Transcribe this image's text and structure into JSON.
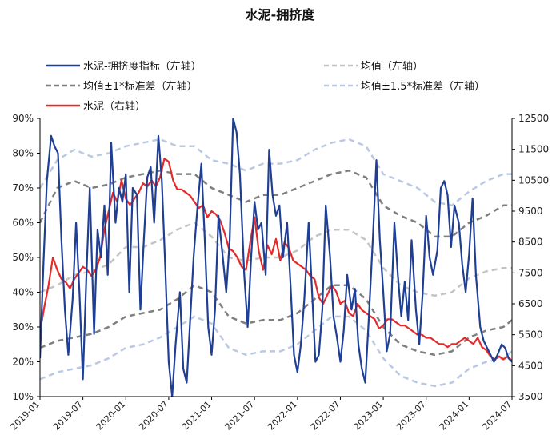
{
  "chart_data": {
    "type": "line",
    "title": "水泥-拥挤度",
    "xlabel": "",
    "ylabel_left": "",
    "ylabel_right": "",
    "x_start": "2019-01",
    "x_end": "2024-07",
    "x_tick_labels": [
      "2019-01",
      "2019-07",
      "2020-01",
      "2020-07",
      "2021-01",
      "2021-07",
      "2022-01",
      "2022-07",
      "2023-01",
      "2023-07",
      "2024-01",
      "2024-07"
    ],
    "y_left": {
      "min": 0.1,
      "max": 0.9,
      "ticks": [
        "10%",
        "20%",
        "30%",
        "40%",
        "50%",
        "60%",
        "70%",
        "80%",
        "90%"
      ]
    },
    "y_right": {
      "min": 3500,
      "max": 12500,
      "ticks": [
        "3500",
        "4500",
        "5500",
        "6500",
        "7500",
        "8500",
        "9500",
        "10500",
        "11500",
        "12500"
      ]
    },
    "grid": false,
    "legend_position": "top",
    "legend": [
      {
        "label": "水泥-拥挤度指标（左轴）",
        "color": "#1f3f94",
        "style": "solid"
      },
      {
        "label": "均值（左轴）",
        "color": "#c4c4c4",
        "style": "dashed"
      },
      {
        "label": "均值±1*标准差（左轴）",
        "color": "#7f7f7f",
        "style": "dashed"
      },
      {
        "label": "均值±1.5*标准差（左轴）",
        "color": "#b9c9e3",
        "style": "dashed"
      },
      {
        "label": "水泥（右轴）",
        "color": "#e32b2b",
        "style": "solid"
      }
    ],
    "series": [
      {
        "name": "水泥-拥挤度指标（左轴）",
        "axis": "left",
        "color": "#1f3f94",
        "x": [
          2019.0,
          2019.04,
          2019.08,
          2019.13,
          2019.17,
          2019.21,
          2019.25,
          2019.29,
          2019.33,
          2019.38,
          2019.42,
          2019.46,
          2019.5,
          2019.54,
          2019.58,
          2019.63,
          2019.67,
          2019.71,
          2019.75,
          2019.79,
          2019.83,
          2019.88,
          2019.92,
          2019.96,
          2020.0,
          2020.04,
          2020.08,
          2020.13,
          2020.17,
          2020.21,
          2020.25,
          2020.29,
          2020.33,
          2020.38,
          2020.42,
          2020.46,
          2020.5,
          2020.54,
          2020.58,
          2020.63,
          2020.67,
          2020.71,
          2020.75,
          2020.79,
          2020.83,
          2020.88,
          2020.92,
          2020.96,
          2021.0,
          2021.04,
          2021.08,
          2021.13,
          2021.17,
          2021.21,
          2021.25,
          2021.29,
          2021.33,
          2021.38,
          2021.42,
          2021.46,
          2021.5,
          2021.54,
          2021.58,
          2021.63,
          2021.67,
          2021.71,
          2021.75,
          2021.79,
          2021.83,
          2021.88,
          2021.92,
          2021.96,
          2022.0,
          2022.04,
          2022.08,
          2022.13,
          2022.17,
          2022.21,
          2022.25,
          2022.29,
          2022.33,
          2022.38,
          2022.42,
          2022.46,
          2022.5,
          2022.54,
          2022.58,
          2022.63,
          2022.67,
          2022.71,
          2022.75,
          2022.79,
          2022.83,
          2022.88,
          2022.92,
          2022.96,
          2023.0,
          2023.04,
          2023.08,
          2023.13,
          2023.17,
          2023.21,
          2023.25,
          2023.29,
          2023.33,
          2023.38,
          2023.42,
          2023.46,
          2023.5,
          2023.54,
          2023.58,
          2023.63,
          2023.67,
          2023.71,
          2023.75,
          2023.79,
          2023.83,
          2023.88,
          2023.92,
          2023.96,
          2024.0,
          2024.04,
          2024.08,
          2024.13,
          2024.17,
          2024.21,
          2024.25,
          2024.29,
          2024.33,
          2024.38,
          2024.42,
          2024.46,
          2024.5
        ],
        "y": [
          0.21,
          0.48,
          0.72,
          0.85,
          0.82,
          0.8,
          0.55,
          0.35,
          0.22,
          0.38,
          0.6,
          0.4,
          0.15,
          0.44,
          0.7,
          0.28,
          0.58,
          0.5,
          0.65,
          0.45,
          0.83,
          0.6,
          0.7,
          0.66,
          0.74,
          0.4,
          0.7,
          0.68,
          0.35,
          0.55,
          0.73,
          0.76,
          0.6,
          0.85,
          0.72,
          0.47,
          0.2,
          0.1,
          0.25,
          0.4,
          0.18,
          0.14,
          0.32,
          0.5,
          0.63,
          0.77,
          0.55,
          0.3,
          0.22,
          0.35,
          0.62,
          0.5,
          0.4,
          0.55,
          0.9,
          0.86,
          0.74,
          0.45,
          0.3,
          0.5,
          0.66,
          0.58,
          0.6,
          0.45,
          0.81,
          0.68,
          0.62,
          0.65,
          0.5,
          0.6,
          0.42,
          0.22,
          0.17,
          0.25,
          0.38,
          0.6,
          0.4,
          0.2,
          0.22,
          0.35,
          0.65,
          0.5,
          0.33,
          0.27,
          0.2,
          0.29,
          0.45,
          0.35,
          0.41,
          0.25,
          0.18,
          0.14,
          0.32,
          0.56,
          0.78,
          0.55,
          0.4,
          0.23,
          0.28,
          0.6,
          0.45,
          0.33,
          0.43,
          0.32,
          0.55,
          0.35,
          0.25,
          0.4,
          0.62,
          0.5,
          0.45,
          0.52,
          0.7,
          0.72,
          0.68,
          0.53,
          0.65,
          0.6,
          0.48,
          0.4,
          0.51,
          0.67,
          0.45,
          0.3,
          0.26,
          0.24,
          0.22,
          0.2,
          0.22,
          0.25,
          0.24,
          0.21,
          0.2
        ],
        "note_values_approx": true
      },
      {
        "name": "水泥（右轴）",
        "axis": "right",
        "color": "#e32b2b",
        "x": [
          2019.0,
          2019.05,
          2019.1,
          2019.15,
          2019.2,
          2019.25,
          2019.3,
          2019.35,
          2019.4,
          2019.45,
          2019.5,
          2019.55,
          2019.6,
          2019.65,
          2019.7,
          2019.75,
          2019.8,
          2019.85,
          2019.9,
          2019.95,
          2020.0,
          2020.05,
          2020.1,
          2020.15,
          2020.2,
          2020.25,
          2020.3,
          2020.35,
          2020.4,
          2020.45,
          2020.5,
          2020.55,
          2020.6,
          2020.65,
          2020.7,
          2020.75,
          2020.8,
          2020.85,
          2020.9,
          2020.95,
          2021.0,
          2021.05,
          2021.1,
          2021.15,
          2021.2,
          2021.25,
          2021.3,
          2021.35,
          2021.4,
          2021.45,
          2021.5,
          2021.55,
          2021.6,
          2021.65,
          2021.7,
          2021.75,
          2021.8,
          2021.85,
          2021.9,
          2021.95,
          2022.0,
          2022.05,
          2022.1,
          2022.15,
          2022.2,
          2022.25,
          2022.3,
          2022.35,
          2022.4,
          2022.45,
          2022.5,
          2022.55,
          2022.6,
          2022.65,
          2022.7,
          2022.75,
          2022.8,
          2022.85,
          2022.9,
          2022.95,
          2023.0,
          2023.05,
          2023.1,
          2023.15,
          2023.2,
          2023.25,
          2023.3,
          2023.35,
          2023.4,
          2023.45,
          2023.5,
          2023.55,
          2023.6,
          2023.65,
          2023.7,
          2023.75,
          2023.8,
          2023.85,
          2023.9,
          2023.95,
          2024.0,
          2024.05,
          2024.1,
          2024.15,
          2024.2,
          2024.25,
          2024.3,
          2024.35,
          2024.4,
          2024.45,
          2024.5
        ],
        "y": [
          5600,
          6400,
          7100,
          8000,
          7600,
          7300,
          7200,
          7000,
          7300,
          7500,
          7700,
          7600,
          7400,
          7600,
          8000,
          8900,
          9500,
          10100,
          9800,
          10500,
          9900,
          9700,
          9900,
          10100,
          10400,
          10300,
          10500,
          10300,
          10600,
          11200,
          11100,
          10500,
          10200,
          10200,
          10100,
          10000,
          9800,
          9600,
          9700,
          9300,
          9500,
          9400,
          9200,
          8800,
          8300,
          8200,
          8000,
          7700,
          7600,
          8500,
          9300,
          8200,
          7600,
          8400,
          8100,
          8600,
          7900,
          8500,
          8300,
          7900,
          7800,
          7700,
          7600,
          7400,
          7300,
          6700,
          6500,
          6800,
          7100,
          6900,
          6500,
          6600,
          6200,
          6100,
          6500,
          6300,
          6200,
          6100,
          6000,
          5700,
          5800,
          6000,
          6000,
          5900,
          5800,
          5800,
          5700,
          5600,
          5500,
          5500,
          5400,
          5400,
          5300,
          5200,
          5200,
          5100,
          5200,
          5200,
          5300,
          5400,
          5300,
          5200,
          5400,
          5100,
          5000,
          4800,
          4700,
          4800,
          4700,
          4800,
          4650
        ],
        "note_values_approx": true
      },
      {
        "name": "均值（左轴）",
        "axis": "left",
        "color": "#c4c4c4",
        "x": [
          2019.0,
          2019.2,
          2019.4,
          2019.6,
          2019.8,
          2020.0,
          2020.2,
          2020.4,
          2020.6,
          2020.8,
          2021.0,
          2021.2,
          2021.4,
          2021.6,
          2021.8,
          2022.0,
          2022.2,
          2022.4,
          2022.6,
          2022.8,
          2023.0,
          2023.2,
          2023.4,
          2023.6,
          2023.8,
          2024.0,
          2024.2,
          2024.4,
          2024.5
        ],
        "y": [
          0.4,
          0.42,
          0.45,
          0.46,
          0.48,
          0.53,
          0.53,
          0.55,
          0.58,
          0.6,
          0.56,
          0.5,
          0.49,
          0.5,
          0.5,
          0.52,
          0.56,
          0.58,
          0.58,
          0.55,
          0.47,
          0.42,
          0.4,
          0.39,
          0.4,
          0.44,
          0.46,
          0.47,
          0.47
        ]
      },
      {
        "name": "均值±1*标准差（左轴）",
        "axis": "left",
        "color": "#7f7f7f",
        "x": [
          2019.0,
          2019.2,
          2019.4,
          2019.6,
          2019.8,
          2020.0,
          2020.2,
          2020.4,
          2020.6,
          2020.8,
          2021.0,
          2021.2,
          2021.4,
          2021.6,
          2021.8,
          2022.0,
          2022.2,
          2022.4,
          2022.6,
          2022.8,
          2023.0,
          2023.2,
          2023.4,
          2023.6,
          2023.8,
          2024.0,
          2024.2,
          2024.4,
          2024.5
        ],
        "y_upper": [
          0.6,
          0.7,
          0.72,
          0.7,
          0.71,
          0.73,
          0.74,
          0.75,
          0.74,
          0.74,
          0.7,
          0.68,
          0.66,
          0.68,
          0.68,
          0.7,
          0.72,
          0.74,
          0.75,
          0.73,
          0.65,
          0.62,
          0.6,
          0.56,
          0.56,
          0.6,
          0.62,
          0.65,
          0.65
        ],
        "y_lower": [
          0.24,
          0.26,
          0.27,
          0.28,
          0.3,
          0.33,
          0.34,
          0.35,
          0.38,
          0.42,
          0.4,
          0.33,
          0.31,
          0.32,
          0.32,
          0.34,
          0.38,
          0.42,
          0.42,
          0.38,
          0.3,
          0.25,
          0.23,
          0.22,
          0.23,
          0.27,
          0.29,
          0.3,
          0.32
        ]
      },
      {
        "name": "均值±1.5*标准差（左轴）",
        "axis": "left",
        "color": "#b9c9e3",
        "x": [
          2019.0,
          2019.2,
          2019.4,
          2019.6,
          2019.8,
          2020.0,
          2020.2,
          2020.4,
          2020.6,
          2020.8,
          2021.0,
          2021.2,
          2021.4,
          2021.6,
          2021.8,
          2022.0,
          2022.2,
          2022.4,
          2022.6,
          2022.8,
          2023.0,
          2023.2,
          2023.4,
          2023.6,
          2023.8,
          2024.0,
          2024.2,
          2024.4,
          2024.5
        ],
        "y_upper": [
          0.7,
          0.78,
          0.81,
          0.79,
          0.8,
          0.82,
          0.83,
          0.84,
          0.82,
          0.82,
          0.78,
          0.77,
          0.75,
          0.77,
          0.77,
          0.78,
          0.81,
          0.83,
          0.84,
          0.82,
          0.74,
          0.72,
          0.7,
          0.66,
          0.65,
          0.69,
          0.72,
          0.74,
          0.74
        ],
        "y_lower": [
          0.15,
          0.17,
          0.18,
          0.19,
          0.21,
          0.24,
          0.25,
          0.27,
          0.3,
          0.33,
          0.31,
          0.24,
          0.22,
          0.23,
          0.23,
          0.25,
          0.29,
          0.33,
          0.33,
          0.29,
          0.21,
          0.16,
          0.14,
          0.13,
          0.14,
          0.18,
          0.2,
          0.21,
          0.23
        ]
      }
    ]
  }
}
